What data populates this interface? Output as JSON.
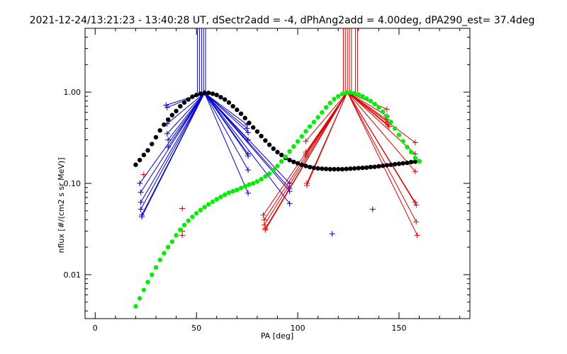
{
  "chart_data": {
    "type": "scatter",
    "title": "2021-12-24/13:21:23 - 13:40:28 UT, dSectr2add = -4, dPhAng2add = 4.00deg, dPA290_est=  37.4deg",
    "xlabel": "PA [deg]",
    "ylabel": "nflux [#/(cm2 s sr MeV)]",
    "xlim": [
      -5,
      185
    ],
    "ylim": [
      0.0033,
      5.0
    ],
    "y_scale": "log",
    "grid": false,
    "x_ticks": [
      0,
      50,
      100,
      150
    ],
    "x_tick_labels": [
      "0",
      "50",
      "100",
      "150"
    ],
    "y_ticks": [
      0.01,
      0.1,
      1.0
    ],
    "y_tick_labels": [
      "0.01",
      "0.10",
      "1.00"
    ],
    "colors": {
      "blue": "#0000cc",
      "red": "#dd0000",
      "black": "#000000",
      "green": "#00ee00"
    },
    "curves": [
      {
        "color": "black",
        "marker": "dot",
        "points": [
          [
            20,
            0.16
          ],
          [
            22,
            0.18
          ],
          [
            24,
            0.205
          ],
          [
            26,
            0.23
          ],
          [
            28,
            0.27
          ],
          [
            30,
            0.32
          ],
          [
            32,
            0.38
          ],
          [
            34,
            0.44
          ],
          [
            36,
            0.5
          ],
          [
            38,
            0.56
          ],
          [
            40,
            0.62
          ],
          [
            42,
            0.7
          ],
          [
            44,
            0.77
          ],
          [
            46,
            0.83
          ],
          [
            48,
            0.89
          ],
          [
            50,
            0.93
          ],
          [
            52,
            0.96
          ],
          [
            54,
            0.98
          ],
          [
            56,
            0.98
          ],
          [
            58,
            0.96
          ],
          [
            60,
            0.93
          ],
          [
            62,
            0.88
          ],
          [
            64,
            0.83
          ],
          [
            66,
            0.77
          ],
          [
            68,
            0.7
          ],
          [
            70,
            0.64
          ],
          [
            72,
            0.58
          ],
          [
            74,
            0.52
          ],
          [
            76,
            0.46
          ],
          [
            78,
            0.41
          ],
          [
            80,
            0.37
          ],
          [
            82,
            0.33
          ],
          [
            84,
            0.295
          ],
          [
            86,
            0.265
          ],
          [
            88,
            0.24
          ],
          [
            90,
            0.22
          ],
          [
            92,
            0.205
          ],
          [
            94,
            0.19
          ],
          [
            96,
            0.18
          ],
          [
            98,
            0.172
          ],
          [
            100,
            0.166
          ],
          [
            102,
            0.16
          ],
          [
            104,
            0.155
          ],
          [
            106,
            0.151
          ],
          [
            108,
            0.148
          ],
          [
            110,
            0.146
          ],
          [
            112,
            0.145
          ],
          [
            114,
            0.144
          ],
          [
            116,
            0.143
          ],
          [
            118,
            0.143
          ],
          [
            120,
            0.143
          ],
          [
            122,
            0.143
          ],
          [
            124,
            0.144
          ],
          [
            126,
            0.145
          ],
          [
            128,
            0.146
          ],
          [
            130,
            0.147
          ],
          [
            132,
            0.148
          ],
          [
            134,
            0.149
          ],
          [
            136,
            0.151
          ],
          [
            138,
            0.152
          ],
          [
            140,
            0.154
          ],
          [
            142,
            0.156
          ],
          [
            144,
            0.158
          ],
          [
            146,
            0.16
          ],
          [
            148,
            0.162
          ],
          [
            150,
            0.164
          ],
          [
            152,
            0.166
          ],
          [
            154,
            0.168
          ],
          [
            156,
            0.171
          ],
          [
            158,
            0.173
          ],
          [
            160,
            0.175
          ]
        ]
      },
      {
        "color": "green",
        "marker": "dot",
        "points": [
          [
            20,
            0.0045
          ],
          [
            22,
            0.0055
          ],
          [
            24,
            0.0068
          ],
          [
            26,
            0.0083
          ],
          [
            28,
            0.01
          ],
          [
            30,
            0.012
          ],
          [
            32,
            0.0145
          ],
          [
            34,
            0.0172
          ],
          [
            36,
            0.02
          ],
          [
            38,
            0.023
          ],
          [
            40,
            0.027
          ],
          [
            42,
            0.031
          ],
          [
            44,
            0.035
          ],
          [
            46,
            0.039
          ],
          [
            48,
            0.043
          ],
          [
            50,
            0.047
          ],
          [
            52,
            0.051
          ],
          [
            54,
            0.055
          ],
          [
            56,
            0.059
          ],
          [
            58,
            0.063
          ],
          [
            60,
            0.067
          ],
          [
            62,
            0.071
          ],
          [
            64,
            0.075
          ],
          [
            66,
            0.079
          ],
          [
            68,
            0.082
          ],
          [
            70,
            0.085
          ],
          [
            72,
            0.089
          ],
          [
            74,
            0.093
          ],
          [
            76,
            0.097
          ],
          [
            78,
            0.1
          ],
          [
            80,
            0.105
          ],
          [
            82,
            0.111
          ],
          [
            84,
            0.119
          ],
          [
            86,
            0.128
          ],
          [
            88,
            0.14
          ],
          [
            90,
            0.155
          ],
          [
            92,
            0.174
          ],
          [
            94,
            0.196
          ],
          [
            96,
            0.224
          ],
          [
            98,
            0.254
          ],
          [
            100,
            0.288
          ],
          [
            102,
            0.327
          ],
          [
            104,
            0.372
          ],
          [
            106,
            0.42
          ],
          [
            108,
            0.47
          ],
          [
            110,
            0.53
          ],
          [
            112,
            0.6
          ],
          [
            114,
            0.68
          ],
          [
            116,
            0.76
          ],
          [
            118,
            0.84
          ],
          [
            120,
            0.9
          ],
          [
            122,
            0.95
          ],
          [
            124,
            0.98
          ],
          [
            126,
            0.99
          ],
          [
            128,
            0.97
          ],
          [
            130,
            0.94
          ],
          [
            132,
            0.9
          ],
          [
            134,
            0.85
          ],
          [
            136,
            0.8
          ],
          [
            138,
            0.74
          ],
          [
            140,
            0.68
          ],
          [
            142,
            0.61
          ],
          [
            144,
            0.54
          ],
          [
            146,
            0.47
          ],
          [
            148,
            0.4
          ],
          [
            150,
            0.34
          ],
          [
            152,
            0.29
          ],
          [
            154,
            0.25
          ],
          [
            156,
            0.22
          ],
          [
            158,
            0.19
          ],
          [
            160,
            0.175
          ]
        ]
      }
    ],
    "blue_fans": {
      "color": "blue",
      "peak": [
        54,
        0.98
      ],
      "left_points": [
        [
          22,
          0.1
        ],
        [
          22.5,
          0.08
        ],
        [
          22.5,
          0.062
        ],
        [
          22.5,
          0.052
        ],
        [
          23,
          0.045
        ],
        [
          23,
          0.043
        ],
        [
          35,
          0.72
        ],
        [
          35.5,
          0.68
        ],
        [
          35.5,
          0.45
        ],
        [
          35.5,
          0.35
        ],
        [
          36,
          0.3
        ],
        [
          36,
          0.25
        ]
      ],
      "right_points": [
        [
          75,
          0.44
        ],
        [
          75,
          0.4
        ],
        [
          75.5,
          0.36
        ],
        [
          75.5,
          0.3
        ],
        [
          75.5,
          0.21
        ],
        [
          75.5,
          0.2
        ],
        [
          75.5,
          0.14
        ],
        [
          75.5,
          0.078
        ],
        [
          96,
          0.1
        ],
        [
          96,
          0.088
        ],
        [
          96,
          0.082
        ],
        [
          96,
          0.06
        ]
      ],
      "isolated_points": [
        [
          117,
          0.028
        ],
        [
          137,
          0.052
        ]
      ],
      "vertical_lines_x": [
        50.5,
        51.5,
        52.5,
        53.5,
        54.5
      ]
    },
    "red_fans": {
      "color": "red",
      "peak": [
        124.5,
        1.0
      ],
      "left_points": [
        [
          83,
          0.045
        ],
        [
          83.5,
          0.04
        ],
        [
          83.5,
          0.035
        ],
        [
          84,
          0.032
        ],
        [
          84,
          0.031
        ],
        [
          104,
          0.29
        ],
        [
          104,
          0.22
        ],
        [
          104,
          0.21
        ],
        [
          104,
          0.2
        ],
        [
          104.5,
          0.1
        ],
        [
          104.5,
          0.095
        ]
      ],
      "right_points": [
        [
          144,
          0.65
        ],
        [
          144,
          0.55
        ],
        [
          144,
          0.5
        ],
        [
          144.5,
          0.47
        ],
        [
          144.5,
          0.44
        ],
        [
          145,
          0.42
        ],
        [
          158,
          0.28
        ],
        [
          158,
          0.21
        ],
        [
          158,
          0.135
        ],
        [
          158,
          0.062
        ],
        [
          158.5,
          0.058
        ],
        [
          158.5,
          0.038
        ],
        [
          159,
          0.027
        ]
      ],
      "isolated_points": [
        [
          24,
          0.125
        ],
        [
          43,
          0.053
        ],
        [
          43,
          0.03
        ],
        [
          43,
          0.027
        ]
      ],
      "vertical_lines_x": [
        122.5,
        123.5,
        124.5,
        125.5,
        126.5,
        128.5,
        129.5
      ]
    }
  }
}
